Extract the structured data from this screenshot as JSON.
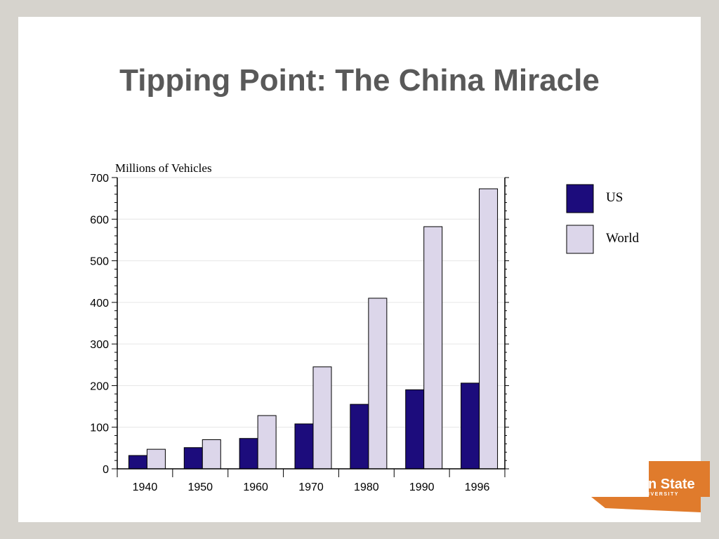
{
  "slide": {
    "title": "Tipping Point: The China Miracle"
  },
  "logo": {
    "text": "n State",
    "subtext": "IVERSITY",
    "color": "#e07b2c"
  },
  "chart_data": {
    "type": "bar",
    "ylabel": "Millions of Vehicles",
    "categories": [
      "1940",
      "1950",
      "1960",
      "1970",
      "1980",
      "1990",
      "1996"
    ],
    "series": [
      {
        "name": "US",
        "color": "#1c0c7c",
        "values": [
          32,
          51,
          73,
          108,
          155,
          190,
          206
        ]
      },
      {
        "name": "World",
        "color": "#dcd6ea",
        "values": [
          47,
          70,
          128,
          245,
          410,
          582,
          673
        ]
      }
    ],
    "ylim": [
      0,
      700
    ],
    "yticks": [
      0,
      100,
      200,
      300,
      400,
      500,
      600,
      700
    ],
    "grid": true,
    "legend": "right"
  }
}
